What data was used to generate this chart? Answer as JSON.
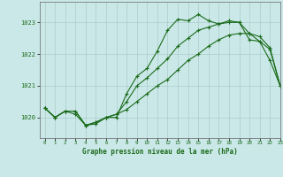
{
  "title": "Graphe pression niveau de la mer (hPa)",
  "background_color": "#cbe8e8",
  "plot_bg_color": "#cbe8e8",
  "grid_color": "#aacccc",
  "line_color": "#1a6b1a",
  "marker_color": "#1a6b1a",
  "xlim": [
    -0.5,
    23
  ],
  "ylim": [
    1019.35,
    1023.65
  ],
  "yticks": [
    1020,
    1021,
    1022,
    1023
  ],
  "xticks": [
    0,
    1,
    2,
    3,
    4,
    5,
    6,
    7,
    8,
    9,
    10,
    11,
    12,
    13,
    14,
    15,
    16,
    17,
    18,
    19,
    20,
    21,
    22,
    23
  ],
  "series": [
    [
      1020.3,
      1020.0,
      1020.2,
      1020.1,
      1019.75,
      1019.8,
      1020.0,
      1020.0,
      1020.75,
      1021.3,
      1021.55,
      1022.1,
      1022.75,
      1023.1,
      1023.05,
      1023.25,
      1023.05,
      1022.95,
      1023.05,
      1023.0,
      1022.45,
      1022.4,
      1022.15,
      1021.0
    ],
    [
      1020.3,
      1020.0,
      1020.2,
      1020.2,
      1019.75,
      1019.85,
      1020.0,
      1020.1,
      1020.5,
      1021.0,
      1021.25,
      1021.55,
      1021.85,
      1022.25,
      1022.5,
      1022.75,
      1022.85,
      1022.95,
      1023.0,
      1023.0,
      1022.65,
      1022.4,
      1021.8,
      1021.0
    ],
    [
      1020.3,
      1020.0,
      1020.2,
      1020.2,
      1019.75,
      1019.85,
      1020.0,
      1020.1,
      1020.25,
      1020.5,
      1020.75,
      1021.0,
      1021.2,
      1021.5,
      1021.8,
      1022.0,
      1022.25,
      1022.45,
      1022.6,
      1022.65,
      1022.65,
      1022.55,
      1022.2,
      1021.0
    ]
  ]
}
